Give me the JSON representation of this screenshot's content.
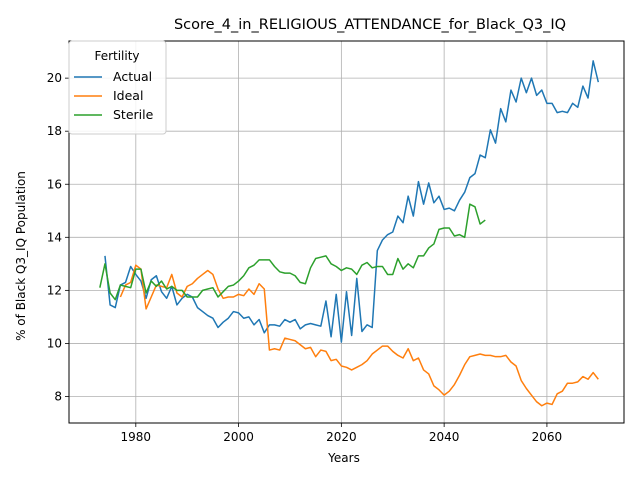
{
  "chart_data": {
    "type": "line",
    "title": "Score_4_in_RELIGIOUS_ATTENDANCE_for_Black_Q3_IQ",
    "xlabel": "Years",
    "ylabel": "% of Black Q3_IQ Population",
    "xlim": [
      1967,
      2075
    ],
    "ylim": [
      7.0,
      21.4
    ],
    "xticks": [
      1980,
      2000,
      2020,
      2040,
      2060
    ],
    "yticks": [
      8,
      10,
      12,
      14,
      16,
      18,
      20
    ],
    "grid": true,
    "legend": {
      "title": "Fertility",
      "placement": "top-left"
    },
    "series": [
      {
        "name": "Actual",
        "color": "#1f77b4",
        "x": [
          1974,
          1975,
          1976,
          1977,
          1978,
          1979,
          1980,
          1981,
          1982,
          1983,
          1984,
          1985,
          1986,
          1987,
          1988,
          1989,
          1990,
          1991,
          1992,
          1993,
          1994,
          1995,
          1996,
          1997,
          1998,
          1999,
          2000,
          2001,
          2002,
          2003,
          2004,
          2005,
          2006,
          2007,
          2008,
          2009,
          2010,
          2011,
          2012,
          2013,
          2014,
          2015,
          2016,
          2017,
          2018,
          2019,
          2020,
          2021,
          2022,
          2023,
          2024,
          2025,
          2026,
          2027,
          2028,
          2029,
          2030,
          2031,
          2032,
          2033,
          2034,
          2035,
          2036,
          2037,
          2038,
          2039,
          2040,
          2041,
          2042,
          2043,
          2044,
          2045,
          2046,
          2047,
          2048,
          2049,
          2050,
          2051,
          2052,
          2053,
          2054,
          2055,
          2056,
          2057,
          2058,
          2059,
          2060,
          2061,
          2062,
          2063,
          2064,
          2065,
          2066,
          2067,
          2068,
          2069,
          2070
        ],
        "y": [
          13.3,
          11.45,
          11.35,
          12.2,
          12.3,
          12.9,
          12.6,
          12.35,
          11.7,
          12.4,
          12.55,
          11.95,
          11.7,
          12.15,
          11.45,
          11.7,
          11.85,
          11.75,
          11.35,
          11.2,
          11.05,
          10.95,
          10.6,
          10.8,
          10.95,
          11.2,
          11.15,
          10.95,
          11.0,
          10.7,
          10.9,
          10.4,
          10.7,
          10.7,
          10.65,
          10.9,
          10.8,
          10.9,
          10.55,
          10.7,
          10.75,
          10.7,
          10.65,
          11.6,
          10.25,
          11.85,
          10.05,
          11.95,
          10.3,
          12.45,
          10.45,
          10.7,
          10.6,
          13.5,
          13.9,
          14.1,
          14.2,
          14.8,
          14.55,
          15.55,
          14.8,
          16.1,
          15.25,
          16.05,
          15.3,
          15.55,
          15.05,
          15.1,
          15.0,
          15.4,
          15.7,
          16.25,
          16.4,
          17.1,
          17.0,
          18.05,
          17.55,
          18.85,
          18.35,
          19.55,
          19.1,
          20.0,
          19.45,
          20.0,
          19.35,
          19.55,
          19.05,
          19.05,
          18.7,
          18.75,
          18.7,
          19.05,
          18.9,
          19.7,
          19.25,
          20.65,
          19.85
        ]
      },
      {
        "name": "Ideal",
        "color": "#ff7f0e",
        "x": [
          1977,
          1978,
          1979,
          1980,
          1981,
          1982,
          1983,
          1984,
          1985,
          1986,
          1987,
          1988,
          1989,
          1990,
          1991,
          1992,
          1993,
          1994,
          1995,
          1996,
          1997,
          1998,
          1999,
          2000,
          2001,
          2002,
          2003,
          2004,
          2005,
          2006,
          2007,
          2008,
          2009,
          2010,
          2011,
          2012,
          2013,
          2014,
          2015,
          2016,
          2017,
          2018,
          2019,
          2020,
          2021,
          2022,
          2023,
          2024,
          2025,
          2026,
          2027,
          2028,
          2029,
          2030,
          2031,
          2032,
          2033,
          2034,
          2035,
          2036,
          2037,
          2038,
          2039,
          2040,
          2041,
          2042,
          2043,
          2044,
          2045,
          2046,
          2047,
          2048,
          2049,
          2050,
          2051,
          2052,
          2053,
          2054,
          2055,
          2056,
          2057,
          2058,
          2059,
          2060,
          2061,
          2062,
          2063,
          2064,
          2065,
          2066,
          2067,
          2068,
          2069,
          2070
        ],
        "y": [
          11.75,
          12.2,
          12.3,
          12.95,
          12.8,
          11.3,
          11.75,
          12.2,
          12.15,
          12.1,
          12.6,
          11.9,
          11.75,
          12.15,
          12.25,
          12.45,
          12.6,
          12.75,
          12.6,
          12.05,
          11.7,
          11.75,
          11.75,
          11.85,
          11.8,
          12.05,
          11.85,
          12.25,
          12.05,
          9.75,
          9.8,
          9.75,
          10.2,
          10.15,
          10.1,
          9.95,
          9.8,
          9.85,
          9.5,
          9.75,
          9.7,
          9.35,
          9.4,
          9.15,
          9.1,
          9.0,
          9.1,
          9.2,
          9.35,
          9.6,
          9.75,
          9.9,
          9.9,
          9.7,
          9.55,
          9.45,
          9.8,
          9.35,
          9.45,
          9.0,
          8.85,
          8.4,
          8.25,
          8.05,
          8.2,
          8.45,
          8.8,
          9.2,
          9.5,
          9.55,
          9.6,
          9.55,
          9.55,
          9.5,
          9.5,
          9.55,
          9.3,
          9.15,
          8.6,
          8.3,
          8.05,
          7.8,
          7.65,
          7.75,
          7.7,
          8.1,
          8.2,
          8.5,
          8.5,
          8.55,
          8.75,
          8.65,
          8.9,
          8.65
        ]
      },
      {
        "name": "Sterile",
        "color": "#2ca02c",
        "x": [
          1973,
          1974,
          1975,
          1976,
          1977,
          1978,
          1979,
          1980,
          1981,
          1982,
          1983,
          1984,
          1985,
          1986,
          1987,
          1988,
          1989,
          1990,
          1991,
          1992,
          1993,
          1994,
          1995,
          1996,
          1997,
          1998,
          1999,
          2000,
          2001,
          2002,
          2003,
          2004,
          2005,
          2006,
          2007,
          2008,
          2009,
          2010,
          2011,
          2012,
          2013,
          2014,
          2015,
          2016,
          2017,
          2018,
          2019,
          2020,
          2021,
          2022,
          2023,
          2024,
          2025,
          2026,
          2027,
          2028,
          2029,
          2030,
          2031,
          2032,
          2033,
          2034,
          2035,
          2036,
          2037,
          2038,
          2039,
          2040,
          2041,
          2042,
          2043,
          2044,
          2045,
          2046,
          2047,
          2048
        ],
        "y": [
          12.1,
          13.0,
          11.9,
          11.65,
          12.2,
          12.15,
          12.1,
          12.8,
          12.8,
          11.9,
          12.35,
          12.15,
          12.35,
          12.05,
          12.15,
          12.0,
          12.0,
          11.75,
          11.75,
          11.75,
          12.0,
          12.05,
          12.1,
          11.75,
          11.95,
          12.15,
          12.2,
          12.35,
          12.55,
          12.85,
          12.95,
          13.15,
          13.15,
          13.15,
          12.9,
          12.7,
          12.65,
          12.65,
          12.55,
          12.3,
          12.25,
          12.85,
          13.2,
          13.25,
          13.3,
          13.0,
          12.9,
          12.75,
          12.85,
          12.8,
          12.6,
          12.95,
          13.05,
          12.85,
          12.9,
          12.9,
          12.6,
          12.6,
          13.2,
          12.8,
          13.0,
          12.85,
          13.3,
          13.3,
          13.6,
          13.75,
          14.3,
          14.35,
          14.35,
          14.05,
          14.1,
          14.0,
          15.25,
          15.15,
          14.5,
          14.65
        ]
      }
    ]
  }
}
